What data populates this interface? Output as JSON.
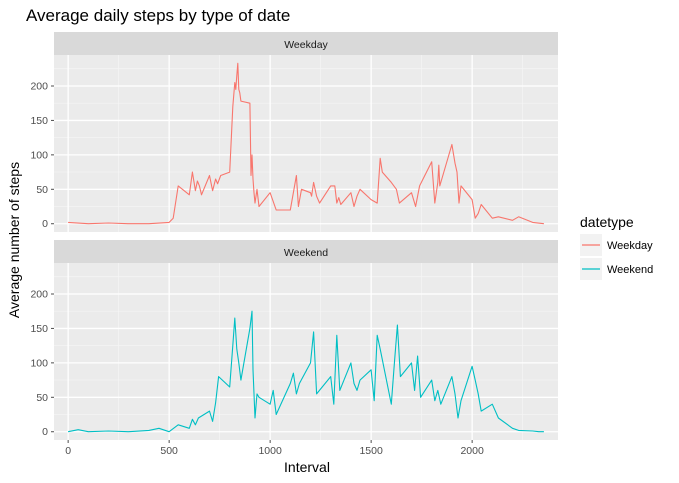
{
  "chart_data": {
    "type": "line",
    "title": "Average daily steps by type of date",
    "xlabel": "Interval",
    "ylabel": "Average number of steps",
    "xlim": [
      -70,
      2425
    ],
    "ylim": [
      -12,
      245
    ],
    "x_ticks": [
      0,
      500,
      1000,
      1500,
      2000
    ],
    "y_ticks": [
      0,
      50,
      100,
      150,
      200
    ],
    "grid": true,
    "legend": {
      "title": "datetype",
      "position": "right"
    },
    "facets": [
      {
        "label": "Weekday",
        "series": {
          "name": "Weekday",
          "color": "#F8766D",
          "x": [
            0,
            100,
            200,
            300,
            400,
            500,
            520,
            545,
            600,
            615,
            630,
            640,
            650,
            660,
            700,
            715,
            730,
            740,
            755,
            800,
            815,
            825,
            830,
            835,
            840,
            845,
            850,
            855,
            900,
            905,
            910,
            915,
            920,
            925,
            935,
            945,
            1000,
            1030,
            1100,
            1130,
            1140,
            1155,
            1200,
            1205,
            1215,
            1230,
            1245,
            1300,
            1320,
            1330,
            1340,
            1350,
            1400,
            1415,
            1430,
            1445,
            1500,
            1530,
            1545,
            1555,
            1600,
            1625,
            1640,
            1700,
            1720,
            1740,
            1800,
            1815,
            1830,
            1835,
            1840,
            1900,
            1915,
            1925,
            1935,
            1945,
            2000,
            2015,
            2030,
            2045,
            2100,
            2130,
            2200,
            2230,
            2300,
            2355
          ],
          "y": [
            2,
            0,
            1,
            0,
            0,
            2,
            8,
            55,
            42,
            75,
            48,
            62,
            55,
            42,
            70,
            48,
            65,
            58,
            70,
            75,
            170,
            205,
            195,
            215,
            233,
            195,
            190,
            178,
            175,
            70,
            100,
            65,
            45,
            30,
            50,
            25,
            45,
            20,
            20,
            70,
            25,
            50,
            45,
            40,
            60,
            40,
            30,
            55,
            55,
            30,
            38,
            28,
            45,
            25,
            40,
            50,
            35,
            30,
            95,
            75,
            60,
            50,
            30,
            45,
            25,
            55,
            90,
            30,
            60,
            85,
            55,
            115,
            88,
            75,
            30,
            55,
            35,
            8,
            15,
            28,
            8,
            10,
            5,
            10,
            2,
            0
          ]
        }
      },
      {
        "label": "Weekend",
        "series": {
          "name": "Weekend",
          "color": "#00BFC4",
          "x": [
            0,
            50,
            100,
            200,
            300,
            400,
            450,
            500,
            545,
            600,
            615,
            630,
            645,
            700,
            715,
            730,
            745,
            800,
            815,
            825,
            835,
            845,
            855,
            900,
            910,
            915,
            925,
            935,
            945,
            1000,
            1015,
            1030,
            1100,
            1115,
            1130,
            1145,
            1200,
            1215,
            1230,
            1300,
            1315,
            1330,
            1345,
            1400,
            1415,
            1430,
            1445,
            1500,
            1515,
            1530,
            1545,
            1600,
            1615,
            1630,
            1645,
            1700,
            1715,
            1730,
            1745,
            1800,
            1815,
            1830,
            1845,
            1900,
            1915,
            1930,
            1945,
            2000,
            2015,
            2030,
            2045,
            2100,
            2130,
            2200,
            2230,
            2300,
            2330,
            2355
          ],
          "y": [
            0,
            3,
            0,
            1,
            0,
            2,
            5,
            0,
            10,
            5,
            18,
            10,
            20,
            30,
            15,
            42,
            80,
            65,
            125,
            165,
            120,
            100,
            75,
            150,
            175,
            90,
            20,
            55,
            50,
            40,
            60,
            25,
            70,
            85,
            55,
            70,
            100,
            145,
            55,
            80,
            40,
            140,
            60,
            100,
            70,
            60,
            75,
            90,
            45,
            140,
            120,
            40,
            100,
            155,
            80,
            100,
            60,
            110,
            50,
            75,
            45,
            60,
            40,
            80,
            55,
            20,
            45,
            95,
            75,
            55,
            30,
            40,
            20,
            5,
            2,
            1,
            0,
            0
          ]
        }
      }
    ]
  }
}
